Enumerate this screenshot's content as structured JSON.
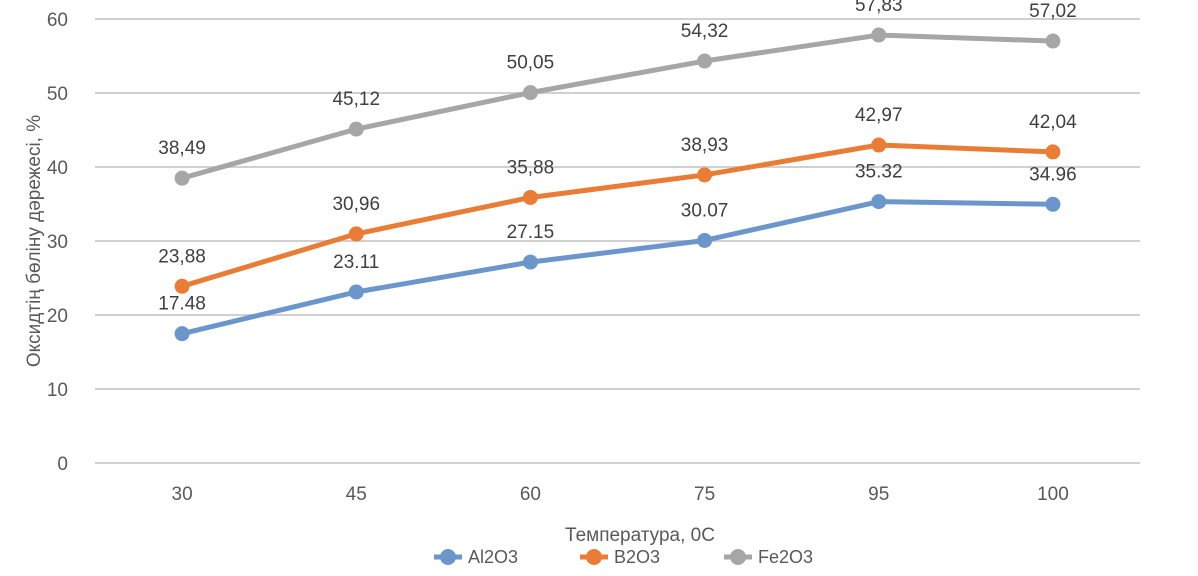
{
  "chart_data": {
    "type": "line",
    "title": "",
    "xlabel": "Температура, 0С",
    "ylabel": "Оксидтің бөліну дәрежесі, %",
    "categories": [
      "30",
      "45",
      "60",
      "75",
      "95",
      "100"
    ],
    "ylim": [
      0,
      60
    ],
    "yticks": [
      "0",
      "10",
      "20",
      "30",
      "40",
      "50",
      "60"
    ],
    "grid": true,
    "legend_position": "bottom",
    "series": [
      {
        "name": "Al2O3",
        "color": "#6a96cc",
        "values": [
          17.48,
          23.11,
          27.15,
          30.07,
          35.32,
          34.96
        ],
        "labels": [
          "17.48",
          "23.11",
          "27.15",
          "30.07",
          "35.32",
          "34.96"
        ]
      },
      {
        "name": "B2O3",
        "color": "#ea7d35",
        "values": [
          23.88,
          30.96,
          35.88,
          38.93,
          42.97,
          42.04
        ],
        "labels": [
          "23,88",
          "30,96",
          "35,88",
          "38,93",
          "42,97",
          "42,04"
        ]
      },
      {
        "name": "Fe2O3",
        "color": "#a6a6a6",
        "values": [
          38.49,
          45.12,
          50.05,
          54.32,
          57.83,
          57.02
        ],
        "labels": [
          "38,49",
          "45,12",
          "50,05",
          "54,32",
          "57,83",
          "57,02"
        ]
      }
    ]
  }
}
